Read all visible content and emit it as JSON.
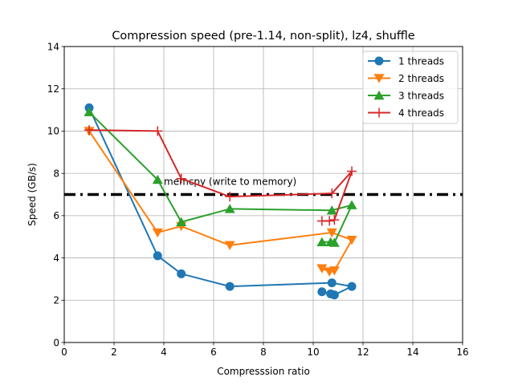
{
  "chart_data": {
    "type": "line",
    "title": "Compression speed (pre-1.14, non-split), lz4, shuffle",
    "xlabel": "Compresssion ratio",
    "ylabel": "Speed (GB/s)",
    "xlim": [
      0,
      16
    ],
    "ylim": [
      0,
      14
    ],
    "xticks": [
      0,
      2,
      4,
      6,
      8,
      10,
      12,
      14,
      16
    ],
    "yticks": [
      0,
      2,
      4,
      6,
      8,
      10,
      12,
      14
    ],
    "grid": true,
    "legend_position": "upper-right",
    "series": [
      {
        "name": "1 threads",
        "color": "#1f77b4",
        "marker": "circle",
        "points": [
          [
            1.0,
            11.1
          ],
          [
            3.75,
            4.1
          ],
          [
            4.7,
            3.25
          ],
          [
            6.65,
            2.65
          ],
          [
            10.75,
            2.82
          ],
          [
            11.55,
            2.65
          ],
          [
            10.85,
            2.25
          ],
          [
            10.7,
            2.3
          ],
          [
            10.35,
            2.4
          ]
        ]
      },
      {
        "name": "2 threads",
        "color": "#ff7f0e",
        "marker": "triangle-down",
        "points": [
          [
            1.0,
            10.0
          ],
          [
            3.75,
            5.2
          ],
          [
            4.7,
            5.5
          ],
          [
            6.65,
            4.6
          ],
          [
            10.75,
            5.2
          ],
          [
            11.55,
            4.85
          ],
          [
            10.85,
            3.4
          ],
          [
            10.65,
            3.35
          ],
          [
            10.35,
            3.5
          ]
        ]
      },
      {
        "name": "3 threads",
        "color": "#2ca02c",
        "marker": "triangle-up",
        "points": [
          [
            1.0,
            10.9
          ],
          [
            3.75,
            7.7
          ],
          [
            4.7,
            5.7
          ],
          [
            6.65,
            6.32
          ],
          [
            10.75,
            6.25
          ],
          [
            11.55,
            6.5
          ],
          [
            10.85,
            4.72
          ],
          [
            10.7,
            4.75
          ],
          [
            10.35,
            4.75
          ]
        ]
      },
      {
        "name": "4 threads",
        "color": "#d62728",
        "marker": "plus",
        "points": [
          [
            1.0,
            10.05
          ],
          [
            3.75,
            10.0
          ],
          [
            4.7,
            7.75
          ],
          [
            6.65,
            6.9
          ],
          [
            10.75,
            7.05
          ],
          [
            11.55,
            8.1
          ],
          [
            10.85,
            5.8
          ],
          [
            10.65,
            5.75
          ],
          [
            10.35,
            5.75
          ]
        ]
      }
    ],
    "reference_line": {
      "y": 7.0,
      "label": "memcpy (write to memory)",
      "style": "dash-dot",
      "color": "#000000"
    }
  }
}
